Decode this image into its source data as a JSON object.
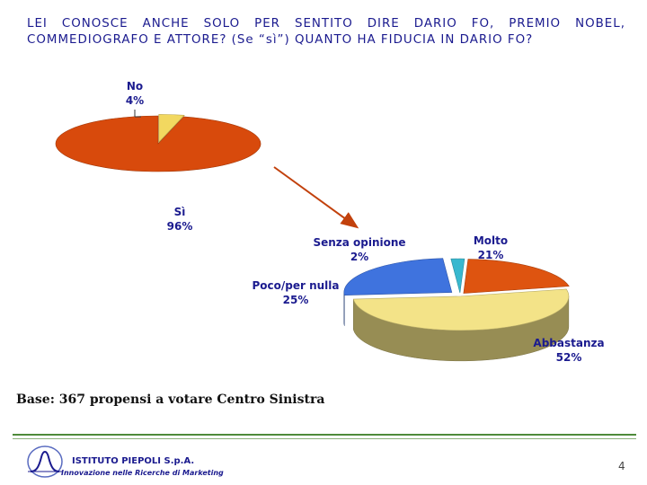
{
  "title": {
    "line1": "LEI CONOSCE ANCHE SOLO PER SENTITO DIRE DARIO FO, PREMIO NOBEL,",
    "line2": "COMMEDIOGRAFO E ATTORE? (Se “sì”) QUANTO HA FIDUCIA IN DARIO FO?"
  },
  "chart_data": [
    {
      "type": "pie",
      "categories": [
        "Sì",
        "No"
      ],
      "values": [
        96,
        4
      ],
      "value_labels": [
        "96%",
        "4%"
      ],
      "colors": [
        "#d84a0c",
        "#f2d860"
      ]
    },
    {
      "type": "pie",
      "categories": [
        "Abbastanza",
        "Poco/per nulla",
        "Senza opinione",
        "Molto"
      ],
      "values": [
        52,
        25,
        2,
        21
      ],
      "value_labels": [
        "52%",
        "25%",
        "2%",
        "21%"
      ],
      "colors": [
        "#f3e388",
        "#3f73de",
        "#38b8cf",
        "#de5410"
      ]
    }
  ],
  "base_note": "Base: 367 propensi a votare Centro Sinistra",
  "footer": {
    "logo_name": "ISTITUTO PIEPOLI S.p.A.",
    "logo_tagline": "Innovazione nelle Ricerche di Marketing",
    "page_number": "4"
  }
}
